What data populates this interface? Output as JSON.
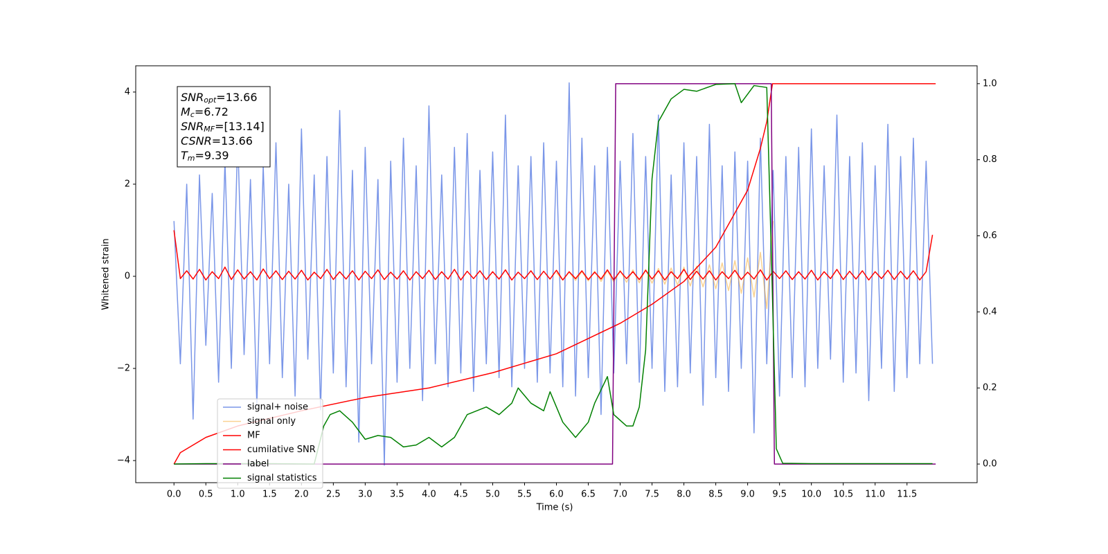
{
  "chart_data": {
    "type": "line",
    "xlabel": "Time (s)",
    "ylabel": "Whitened strain",
    "xlim": [
      -0.6,
      12.6
    ],
    "ylim": [
      -4.48,
      4.57
    ],
    "y2lim": [
      -0.049,
      1.047
    ],
    "xticks": [
      {
        "value": 0,
        "label": "0.0"
      },
      {
        "value": 0.5,
        "label": "0.5"
      },
      {
        "value": 1,
        "label": "1.0"
      },
      {
        "value": 1.5,
        "label": "1.5"
      },
      {
        "value": 2,
        "label": "2.0"
      },
      {
        "value": 2.5,
        "label": "2.5"
      },
      {
        "value": 3,
        "label": "3.0"
      },
      {
        "value": 3.5,
        "label": "3.5"
      },
      {
        "value": 4,
        "label": "4.0"
      },
      {
        "value": 4.5,
        "label": "4.5"
      },
      {
        "value": 5,
        "label": "5.0"
      },
      {
        "value": 5.5,
        "label": "5.5"
      },
      {
        "value": 6,
        "label": "6.0"
      },
      {
        "value": 6.5,
        "label": "6.5"
      },
      {
        "value": 7,
        "label": "7.0"
      },
      {
        "value": 7.5,
        "label": "7.5"
      },
      {
        "value": 8,
        "label": "8.0"
      },
      {
        "value": 8.5,
        "label": "8.5"
      },
      {
        "value": 9,
        "label": "9.0"
      },
      {
        "value": 9.5,
        "label": "9.5"
      },
      {
        "value": 10,
        "label": "10.0"
      },
      {
        "value": 10.5,
        "label": "10.5"
      },
      {
        "value": 11,
        "label": "11.0"
      },
      {
        "value": 11.5,
        "label": "11.5"
      }
    ],
    "yticks": [
      {
        "value": -4,
        "label": "−4"
      },
      {
        "value": -2,
        "label": "−2"
      },
      0,
      2,
      4
    ],
    "y2ticks": [
      {
        "value": 0,
        "label": "0.0"
      },
      {
        "value": 0.2,
        "label": "0.2"
      },
      {
        "value": 0.4,
        "label": "0.4"
      },
      {
        "value": 0.6,
        "label": "0.6"
      },
      {
        "value": 0.8,
        "label": "0.8"
      },
      {
        "value": 1,
        "label": "1.0"
      }
    ],
    "legend": "lower left",
    "annotations": [
      {
        "symbol": "SNR",
        "subscript": "opt",
        "text": "=13.66"
      },
      {
        "symbol": "M",
        "subscript": "c",
        "text": "=6.72"
      },
      {
        "symbol": "SNR",
        "subscript": "MF",
        "text": "=[13.14]"
      },
      {
        "symbol": "CSNR",
        "text": "=13.66"
      },
      {
        "symbol": "T",
        "subscript": "m",
        "text": "=9.39"
      }
    ],
    "x": [
      0,
      0.1,
      0.2,
      0.3,
      0.4,
      0.5,
      0.6,
      0.7,
      0.8,
      0.9,
      1,
      1.1,
      1.2,
      1.3,
      1.4,
      1.5,
      1.6,
      1.7,
      1.8,
      1.9,
      2,
      2.1,
      2.2,
      2.3,
      2.4,
      2.5,
      2.6,
      2.7,
      2.8,
      2.9,
      3,
      3.1,
      3.2,
      3.3,
      3.4,
      3.5,
      3.6,
      3.7,
      3.8,
      3.9,
      4,
      4.1,
      4.2,
      4.3,
      4.4,
      4.5,
      4.6,
      4.7,
      4.8,
      4.9,
      5,
      5.1,
      5.2,
      5.3,
      5.4,
      5.5,
      5.6,
      5.7,
      5.8,
      5.9,
      6,
      6.1,
      6.2,
      6.3,
      6.4,
      6.5,
      6.6,
      6.7,
      6.8,
      6.9,
      7,
      7.1,
      7.2,
      7.3,
      7.4,
      7.5,
      7.6,
      7.7,
      7.8,
      7.9,
      8,
      8.1,
      8.2,
      8.3,
      8.4,
      8.5,
      8.6,
      8.7,
      8.8,
      8.9,
      9,
      9.1,
      9.2,
      9.3,
      9.4,
      9.5,
      9.6,
      9.7,
      9.8,
      9.9,
      10,
      10.1,
      10.2,
      10.3,
      10.4,
      10.5,
      10.6,
      10.7,
      10.8,
      10.9,
      11,
      11.1,
      11.2,
      11.3,
      11.4,
      11.5,
      11.6,
      11.7,
      11.8,
      11.9
    ],
    "series": [
      {
        "name": "signal+ noise",
        "color": "#7a96e8",
        "values": [
          1.2,
          -1.9,
          2.0,
          -3.1,
          2.2,
          -1.5,
          1.8,
          -2.3,
          2.5,
          -2.0,
          3.0,
          -1.7,
          2.1,
          -2.8,
          2.4,
          -1.9,
          2.9,
          -2.2,
          2.0,
          -2.6,
          3.2,
          -1.8,
          2.2,
          -2.9,
          2.6,
          -2.1,
          3.6,
          -2.4,
          2.3,
          -3.6,
          2.8,
          -1.9,
          2.1,
          -4.1,
          2.5,
          -2.3,
          3.0,
          -2.0,
          2.4,
          -2.7,
          3.7,
          -1.9,
          2.2,
          -2.4,
          2.8,
          -2.1,
          3.1,
          -2.5,
          2.3,
          -1.9,
          2.7,
          -2.2,
          3.5,
          -2.4,
          2.4,
          -2.0,
          2.6,
          -2.3,
          2.9,
          -2.1,
          2.5,
          -2.4,
          4.2,
          -2.6,
          3.0,
          -2.2,
          2.4,
          -3.0,
          2.8,
          -2.1,
          2.5,
          -1.9,
          3.1,
          -2.3,
          2.6,
          -2.0,
          3.5,
          -2.5,
          2.2,
          -2.4,
          2.9,
          -2.1,
          2.6,
          -2.8,
          3.3,
          -2.2,
          2.4,
          -2.5,
          2.7,
          -2.0,
          2.5,
          -3.4,
          3.0,
          -1.9,
          2.3,
          -2.6,
          2.6,
          -2.2,
          2.8,
          -2.4,
          3.2,
          -2.0,
          2.4,
          -1.8,
          3.5,
          -2.3,
          2.6,
          -2.1,
          2.9,
          -2.7,
          2.4,
          -2.0,
          3.3,
          -2.5,
          2.6,
          -2.2,
          3.0,
          -1.9,
          2.5,
          -1.9
        ]
      },
      {
        "name": "signal only",
        "color": "#f5a623",
        "alpha": 0.5,
        "x": [
          6,
          6.1,
          6.2,
          6.3,
          6.4,
          6.5,
          6.6,
          6.7,
          6.8,
          6.9,
          7,
          7.1,
          7.2,
          7.3,
          7.4,
          7.5,
          7.6,
          7.7,
          7.8,
          7.9,
          8,
          8.1,
          8.2,
          8.3,
          8.4,
          8.5,
          8.6,
          8.7,
          8.8,
          8.9,
          9,
          9.1,
          9.2,
          9.3,
          9.4
        ],
        "values": [
          0.08,
          -0.08,
          0.09,
          -0.09,
          0.1,
          -0.1,
          0.11,
          -0.11,
          0.12,
          -0.12,
          0.13,
          -0.13,
          0.14,
          -0.14,
          0.15,
          -0.15,
          0.17,
          -0.17,
          0.18,
          -0.19,
          0.2,
          -0.21,
          0.22,
          -0.23,
          0.25,
          -0.27,
          0.29,
          -0.31,
          0.34,
          -0.37,
          0.4,
          -0.45,
          0.52,
          -0.7,
          1.2
        ]
      },
      {
        "name": "MF",
        "color": "#ff0000",
        "values": [
          1.0,
          -0.05,
          0.12,
          -0.06,
          0.15,
          -0.08,
          0.1,
          -0.05,
          0.2,
          -0.07,
          0.14,
          -0.06,
          0.1,
          -0.08,
          0.16,
          -0.05,
          0.12,
          -0.07,
          0.11,
          -0.06,
          0.13,
          -0.08,
          0.09,
          -0.05,
          0.15,
          -0.07,
          0.1,
          -0.06,
          0.12,
          -0.08,
          0.11,
          -0.05,
          0.14,
          -0.07,
          0.09,
          -0.06,
          0.12,
          -0.08,
          0.1,
          -0.05,
          0.13,
          -0.07,
          0.1,
          -0.06,
          0.15,
          -0.08,
          0.11,
          -0.05,
          0.12,
          -0.07,
          0.1,
          -0.06,
          0.14,
          -0.08,
          0.09,
          -0.05,
          0.12,
          -0.07,
          0.11,
          -0.06,
          0.13,
          -0.08,
          0.1,
          -0.05,
          0.12,
          -0.07,
          0.09,
          -0.06,
          0.14,
          -0.08,
          0.11,
          -0.05,
          0.1,
          -0.07,
          0.13,
          -0.06,
          0.12,
          -0.08,
          0.1,
          -0.05,
          0.15,
          -0.07,
          0.11,
          -0.06,
          0.12,
          -0.08,
          0.1,
          -0.05,
          0.13,
          -0.07,
          0.09,
          -0.06,
          0.14,
          -0.08,
          0.11,
          -0.05,
          0.12,
          -0.07,
          0.1,
          -0.06,
          0.13,
          -0.08,
          0.1,
          -0.05,
          0.15,
          -0.07,
          0.11,
          -0.06,
          0.12,
          -0.08,
          0.1,
          -0.05,
          0.13,
          -0.07,
          0.11,
          -0.06,
          0.12,
          -0.08,
          0.1,
          0.9
        ]
      },
      {
        "name": "cumilative SNR",
        "color": "#ff0000",
        "axis": "y2",
        "x": [
          0,
          0.1,
          0.5,
          1,
          2,
          3,
          4,
          5,
          6,
          7,
          7.5,
          8,
          8.5,
          9,
          9.2,
          9.3,
          9.39,
          11.95
        ],
        "values": [
          0,
          0.03,
          0.07,
          0.1,
          0.14,
          0.175,
          0.2,
          0.24,
          0.29,
          0.37,
          0.42,
          0.48,
          0.57,
          0.72,
          0.83,
          0.9,
          1.0,
          1.0
        ]
      },
      {
        "name": "label",
        "color": "#800080",
        "axis": "y2",
        "x": [
          0,
          6.88,
          6.93,
          9.37,
          9.42,
          11.95
        ],
        "values": [
          0,
          0,
          1,
          1,
          0,
          0
        ]
      },
      {
        "name": "signal statistics",
        "color": "#008000",
        "axis": "y2",
        "x": [
          0,
          0.5,
          1.5,
          2.2,
          2.35,
          2.45,
          2.6,
          2.8,
          3,
          3.2,
          3.4,
          3.6,
          3.8,
          4,
          4.2,
          4.4,
          4.6,
          4.9,
          5.1,
          5.3,
          5.4,
          5.6,
          5.8,
          5.9,
          6.1,
          6.3,
          6.5,
          6.6,
          6.8,
          6.9,
          7.1,
          7.2,
          7.3,
          7.4,
          7.5,
          7.6,
          7.8,
          8,
          8.2,
          8.5,
          8.8,
          8.9,
          9.1,
          9.3,
          9.38,
          9.45,
          9.55,
          10,
          11.9
        ],
        "values": [
          0,
          0.001,
          0.001,
          0,
          0.1,
          0.13,
          0.14,
          0.11,
          0.065,
          0.075,
          0.07,
          0.045,
          0.05,
          0.07,
          0.045,
          0.07,
          0.13,
          0.15,
          0.13,
          0.16,
          0.2,
          0.16,
          0.14,
          0.19,
          0.11,
          0.07,
          0.11,
          0.16,
          0.23,
          0.13,
          0.1,
          0.1,
          0.15,
          0.3,
          0.75,
          0.9,
          0.96,
          0.985,
          0.98,
          0.998,
          1.0,
          0.95,
          0.995,
          0.99,
          0.5,
          0.04,
          0.002,
          0.001,
          0.001
        ]
      }
    ]
  }
}
